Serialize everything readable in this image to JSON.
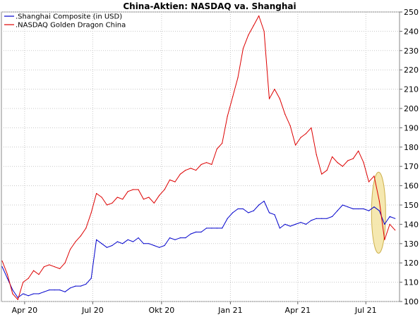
{
  "chart_data": {
    "type": "line",
    "title": "China-Aktien: NASDAQ va. Shanghai",
    "xlabel": "",
    "ylabel": "",
    "ylim": [
      100,
      250
    ],
    "yticks": [
      100,
      110,
      120,
      130,
      140,
      150,
      160,
      170,
      180,
      190,
      200,
      210,
      220,
      230,
      240,
      250
    ],
    "y_axis_side": "right",
    "xlim": [
      "2020-03-01",
      "2021-08-15"
    ],
    "xticks": [
      {
        "label": "Apr 20",
        "date": "2020-04-01"
      },
      {
        "label": "Jul 20",
        "date": "2020-07-01"
      },
      {
        "label": "Okt 20",
        "date": "2020-10-01"
      },
      {
        "label": "Jan 21",
        "date": "2021-01-01"
      },
      {
        "label": "Apr 21",
        "date": "2021-04-01"
      },
      {
        "label": "Jul 21",
        "date": "2021-07-01"
      }
    ],
    "grid": true,
    "legend": "top-left",
    "annotation": {
      "shape": "ellipse",
      "fill": "#f5e6a8",
      "stroke": "#c8a838",
      "x_center": "2021-07-18",
      "y_range": [
        125,
        167
      ]
    },
    "series": [
      {
        "name": ".Shanghai Composite (in USD)",
        "color": "#0000cc",
        "points": [
          [
            "2020-03-02",
            118
          ],
          [
            "2020-03-09",
            112
          ],
          [
            "2020-03-16",
            106
          ],
          [
            "2020-03-23",
            102
          ],
          [
            "2020-03-30",
            104
          ],
          [
            "2020-04-06",
            103
          ],
          [
            "2020-04-13",
            104
          ],
          [
            "2020-04-20",
            104
          ],
          [
            "2020-04-27",
            105
          ],
          [
            "2020-05-04",
            106
          ],
          [
            "2020-05-11",
            106
          ],
          [
            "2020-05-18",
            106
          ],
          [
            "2020-05-25",
            105
          ],
          [
            "2020-06-01",
            107
          ],
          [
            "2020-06-08",
            108
          ],
          [
            "2020-06-15",
            108
          ],
          [
            "2020-06-22",
            109
          ],
          [
            "2020-06-29",
            112
          ],
          [
            "2020-07-06",
            132
          ],
          [
            "2020-07-13",
            130
          ],
          [
            "2020-07-20",
            128
          ],
          [
            "2020-07-27",
            129
          ],
          [
            "2020-08-03",
            131
          ],
          [
            "2020-08-10",
            130
          ],
          [
            "2020-08-17",
            132
          ],
          [
            "2020-08-24",
            131
          ],
          [
            "2020-08-31",
            133
          ],
          [
            "2020-09-07",
            130
          ],
          [
            "2020-09-14",
            130
          ],
          [
            "2020-09-21",
            129
          ],
          [
            "2020-09-28",
            128
          ],
          [
            "2020-10-05",
            129
          ],
          [
            "2020-10-12",
            133
          ],
          [
            "2020-10-19",
            132
          ],
          [
            "2020-10-26",
            133
          ],
          [
            "2020-11-02",
            133
          ],
          [
            "2020-11-09",
            135
          ],
          [
            "2020-11-16",
            136
          ],
          [
            "2020-11-23",
            136
          ],
          [
            "2020-11-30",
            138
          ],
          [
            "2020-12-07",
            138
          ],
          [
            "2020-12-14",
            138
          ],
          [
            "2020-12-21",
            138
          ],
          [
            "2020-12-28",
            143
          ],
          [
            "2021-01-04",
            146
          ],
          [
            "2021-01-11",
            148
          ],
          [
            "2021-01-18",
            148
          ],
          [
            "2021-01-25",
            146
          ],
          [
            "2021-02-01",
            147
          ],
          [
            "2021-02-08",
            150
          ],
          [
            "2021-02-15",
            152
          ],
          [
            "2021-02-22",
            146
          ],
          [
            "2021-03-01",
            145
          ],
          [
            "2021-03-08",
            138
          ],
          [
            "2021-03-15",
            140
          ],
          [
            "2021-03-22",
            139
          ],
          [
            "2021-03-29",
            140
          ],
          [
            "2021-04-05",
            141
          ],
          [
            "2021-04-12",
            140
          ],
          [
            "2021-04-19",
            142
          ],
          [
            "2021-04-26",
            143
          ],
          [
            "2021-05-03",
            143
          ],
          [
            "2021-05-10",
            143
          ],
          [
            "2021-05-17",
            144
          ],
          [
            "2021-05-24",
            147
          ],
          [
            "2021-05-31",
            150
          ],
          [
            "2021-06-07",
            149
          ],
          [
            "2021-06-14",
            148
          ],
          [
            "2021-06-21",
            148
          ],
          [
            "2021-06-28",
            148
          ],
          [
            "2021-07-05",
            147
          ],
          [
            "2021-07-12",
            149
          ],
          [
            "2021-07-19",
            147
          ],
          [
            "2021-07-26",
            140
          ],
          [
            "2021-08-02",
            144
          ],
          [
            "2021-08-09",
            143
          ]
        ]
      },
      {
        "name": ".NASDAQ Golden Dragon China",
        "color": "#dd0000",
        "points": [
          [
            "2020-03-02",
            121
          ],
          [
            "2020-03-09",
            114
          ],
          [
            "2020-03-16",
            104
          ],
          [
            "2020-03-23",
            101
          ],
          [
            "2020-03-30",
            110
          ],
          [
            "2020-04-06",
            112
          ],
          [
            "2020-04-13",
            116
          ],
          [
            "2020-04-20",
            114
          ],
          [
            "2020-04-27",
            118
          ],
          [
            "2020-05-04",
            119
          ],
          [
            "2020-05-11",
            118
          ],
          [
            "2020-05-18",
            117
          ],
          [
            "2020-05-25",
            120
          ],
          [
            "2020-06-01",
            127
          ],
          [
            "2020-06-08",
            131
          ],
          [
            "2020-06-15",
            134
          ],
          [
            "2020-06-22",
            138
          ],
          [
            "2020-06-29",
            146
          ],
          [
            "2020-07-06",
            156
          ],
          [
            "2020-07-13",
            154
          ],
          [
            "2020-07-20",
            150
          ],
          [
            "2020-07-27",
            151
          ],
          [
            "2020-08-03",
            154
          ],
          [
            "2020-08-10",
            153
          ],
          [
            "2020-08-17",
            157
          ],
          [
            "2020-08-24",
            158
          ],
          [
            "2020-08-31",
            158
          ],
          [
            "2020-09-07",
            153
          ],
          [
            "2020-09-14",
            154
          ],
          [
            "2020-09-21",
            151
          ],
          [
            "2020-09-28",
            155
          ],
          [
            "2020-10-05",
            158
          ],
          [
            "2020-10-12",
            163
          ],
          [
            "2020-10-19",
            162
          ],
          [
            "2020-10-26",
            166
          ],
          [
            "2020-11-02",
            168
          ],
          [
            "2020-11-09",
            169
          ],
          [
            "2020-11-16",
            168
          ],
          [
            "2020-11-23",
            171
          ],
          [
            "2020-11-30",
            172
          ],
          [
            "2020-12-07",
            171
          ],
          [
            "2020-12-14",
            179
          ],
          [
            "2020-12-21",
            182
          ],
          [
            "2020-12-28",
            196
          ],
          [
            "2021-01-04",
            206
          ],
          [
            "2021-01-11",
            216
          ],
          [
            "2021-01-18",
            231
          ],
          [
            "2021-01-25",
            238
          ],
          [
            "2021-02-01",
            243
          ],
          [
            "2021-02-08",
            248
          ],
          [
            "2021-02-15",
            240
          ],
          [
            "2021-02-22",
            205
          ],
          [
            "2021-03-01",
            210
          ],
          [
            "2021-03-08",
            205
          ],
          [
            "2021-03-15",
            197
          ],
          [
            "2021-03-22",
            191
          ],
          [
            "2021-03-29",
            181
          ],
          [
            "2021-04-05",
            185
          ],
          [
            "2021-04-12",
            187
          ],
          [
            "2021-04-19",
            190
          ],
          [
            "2021-04-26",
            176
          ],
          [
            "2021-05-03",
            166
          ],
          [
            "2021-05-10",
            168
          ],
          [
            "2021-05-17",
            175
          ],
          [
            "2021-05-24",
            172
          ],
          [
            "2021-05-31",
            170
          ],
          [
            "2021-06-07",
            173
          ],
          [
            "2021-06-14",
            174
          ],
          [
            "2021-06-21",
            178
          ],
          [
            "2021-06-28",
            172
          ],
          [
            "2021-07-05",
            162
          ],
          [
            "2021-07-12",
            165
          ],
          [
            "2021-07-19",
            152
          ],
          [
            "2021-07-26",
            132
          ],
          [
            "2021-08-02",
            140
          ],
          [
            "2021-08-09",
            137
          ]
        ]
      }
    ]
  }
}
